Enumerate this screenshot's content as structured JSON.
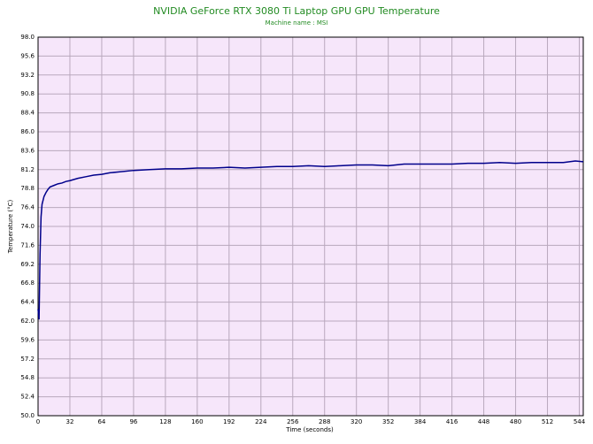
{
  "chart_data": {
    "type": "line",
    "title": "NVIDIA GeForce RTX 3080 Ti Laptop GPU GPU Temperature",
    "subtitle": "Machine name : MSI",
    "x_label": "Time (seconds)",
    "y_label": "Temperature (°C)",
    "color": "#00008b",
    "grid": true,
    "x": [
      0,
      1,
      2,
      3,
      4,
      6,
      8,
      10,
      12,
      16,
      20,
      24,
      28,
      32,
      40,
      48,
      56,
      64,
      72,
      80,
      96,
      112,
      128,
      144,
      160,
      176,
      192,
      208,
      224,
      240,
      256,
      272,
      288,
      304,
      320,
      336,
      352,
      368,
      384,
      400,
      416,
      432,
      448,
      464,
      480,
      496,
      512,
      528,
      540,
      548
    ],
    "values": [
      63.5,
      62.2,
      70.5,
      75.2,
      76.8,
      77.8,
      78.3,
      78.7,
      79.0,
      79.2,
      79.4,
      79.5,
      79.7,
      79.8,
      80.1,
      80.3,
      80.5,
      80.6,
      80.8,
      80.9,
      81.1,
      81.2,
      81.3,
      81.3,
      81.4,
      81.4,
      81.5,
      81.4,
      81.5,
      81.6,
      81.6,
      81.7,
      81.6,
      81.7,
      81.8,
      81.8,
      81.7,
      81.9,
      81.9,
      81.9,
      81.9,
      82.0,
      82.0,
      82.1,
      82.0,
      82.1,
      82.1,
      82.1,
      82.3,
      82.2
    ],
    "xlim": [
      0,
      548
    ],
    "xticks": [
      0,
      32,
      64,
      96,
      128,
      160,
      192,
      224,
      256,
      288,
      320,
      352,
      384,
      416,
      448,
      480,
      512,
      544
    ],
    "ylim": [
      50,
      98
    ],
    "yticks": [
      {
        "value": 50,
        "label": "50.0"
      },
      52.4,
      54.8,
      57.2,
      59.6,
      {
        "value": 62,
        "label": "62.0"
      },
      64.4,
      66.8,
      69.2,
      71.6,
      {
        "value": 74,
        "label": "74.0"
      },
      76.4,
      78.8,
      81.2,
      83.6,
      {
        "value": 86,
        "label": "86.0"
      },
      88.4,
      90.8,
      93.2,
      95.6,
      {
        "value": 98,
        "label": "98.0"
      }
    ]
  }
}
